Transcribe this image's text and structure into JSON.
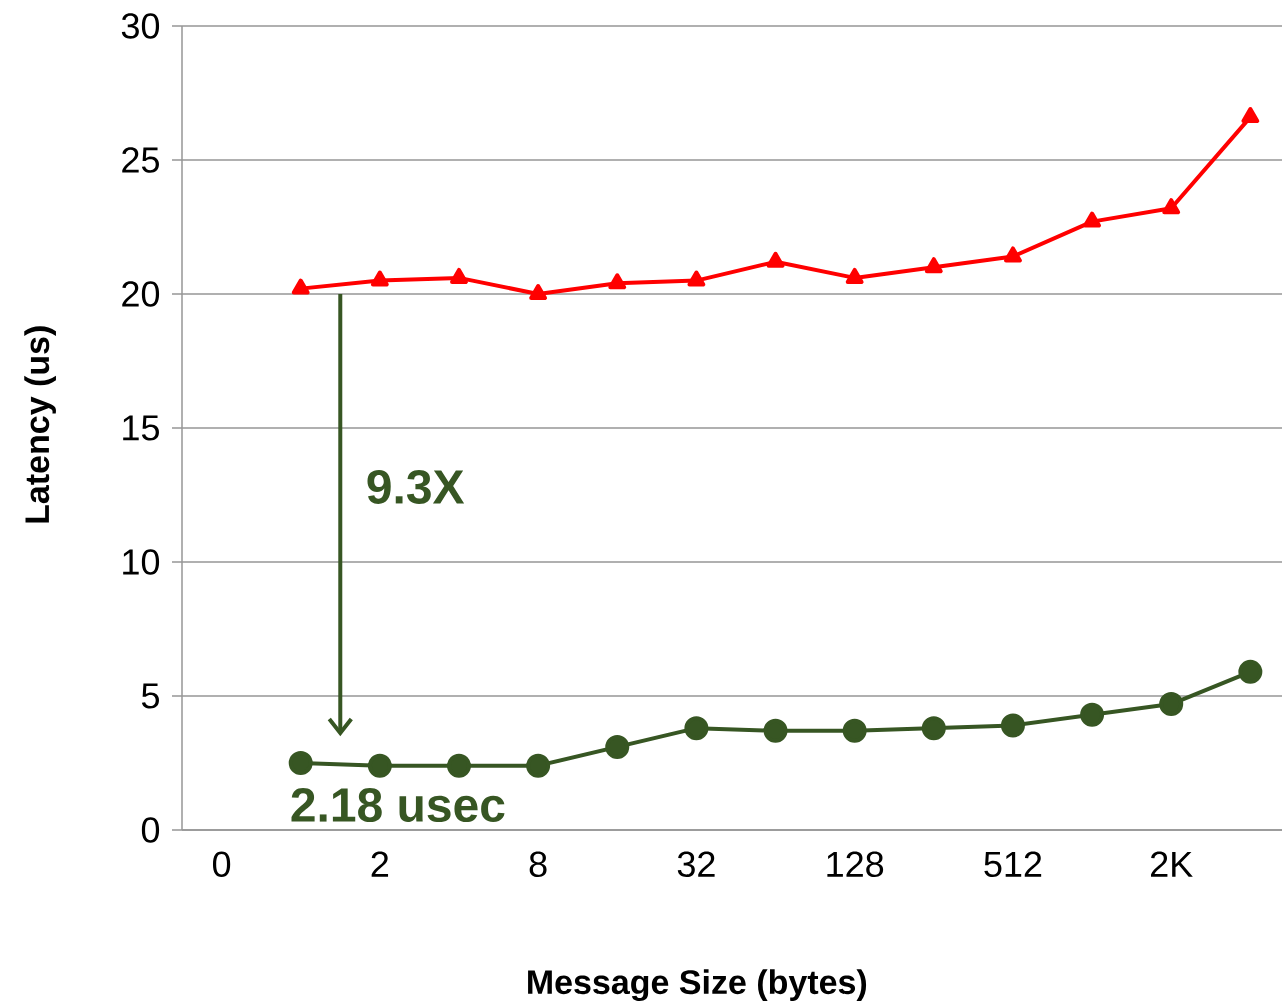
{
  "chart_data": {
    "type": "line",
    "xlabel": "Message Size (bytes)",
    "ylabel": "Latency (us)",
    "categories": [
      "0",
      null,
      "2",
      null,
      "8",
      null,
      "32",
      null,
      "128",
      null,
      "512",
      null,
      "2K",
      null
    ],
    "series": [
      {
        "color": "#ff0000",
        "marker": "triangle",
        "values": [
          null,
          20.2,
          20.5,
          20.6,
          20.0,
          20.4,
          20.5,
          21.2,
          20.6,
          21.0,
          21.4,
          22.7,
          23.2,
          26.6
        ]
      },
      {
        "color": "#375623",
        "marker": "circle",
        "values": [
          null,
          2.5,
          2.4,
          2.4,
          2.4,
          3.1,
          3.8,
          3.7,
          3.7,
          3.8,
          3.9,
          4.3,
          4.7,
          5.9
        ]
      }
    ],
    "ylim": [
      0,
      30
    ],
    "yticks": [
      0,
      5,
      10,
      15,
      20,
      25,
      30
    ],
    "grid": "y",
    "annotations": [
      "9.3X",
      "2.18 usec"
    ]
  }
}
